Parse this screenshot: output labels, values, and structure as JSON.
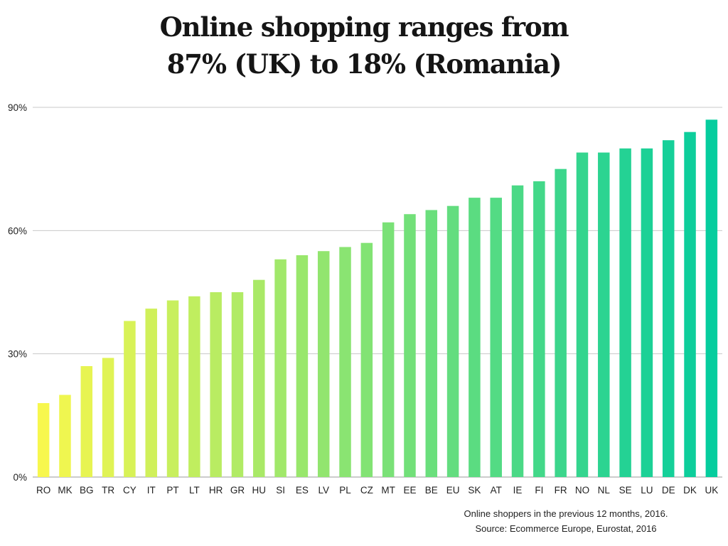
{
  "title": {
    "line1": "Online shopping ranges from",
    "line2": "87% (UK) to 18% (Romania)"
  },
  "footnote": {
    "line1": "Online shoppers in the previous 12 months, 2016.",
    "line2": "Source: Ecommerce Europe, Eurostat, 2016"
  },
  "chart_data": {
    "type": "bar",
    "categories": [
      "RO",
      "MK",
      "BG",
      "TR",
      "CY",
      "IT",
      "PT",
      "LT",
      "HR",
      "GR",
      "HU",
      "SI",
      "ES",
      "LV",
      "PL",
      "CZ",
      "MT",
      "EE",
      "BE",
      "EU",
      "SK",
      "AT",
      "IE",
      "FI",
      "FR",
      "NO",
      "NL",
      "SE",
      "LU",
      "DE",
      "DK",
      "UK"
    ],
    "values": [
      18,
      20,
      27,
      29,
      38,
      41,
      43,
      44,
      45,
      45,
      48,
      53,
      54,
      55,
      56,
      57,
      62,
      64,
      65,
      66,
      68,
      68,
      71,
      72,
      75,
      79,
      79,
      80,
      80,
      82,
      84,
      87
    ],
    "ylim": [
      0,
      90
    ],
    "yticks": [
      0,
      30,
      60,
      90
    ],
    "ytick_labels": [
      "0%",
      "30%",
      "60%",
      "90%"
    ],
    "grid": true,
    "colors": {
      "start": "#f7f74d",
      "end": "#05cd9e"
    }
  }
}
